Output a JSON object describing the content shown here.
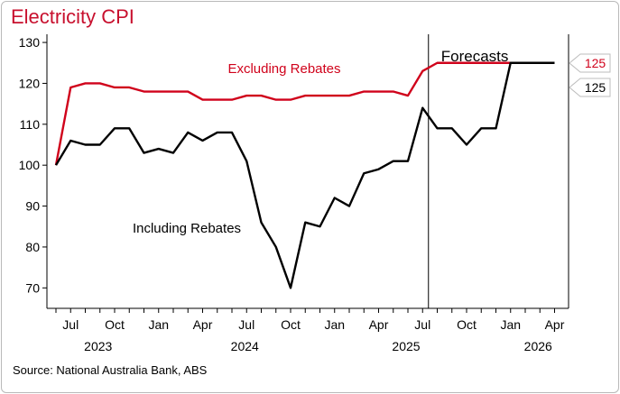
{
  "chart_data": {
    "type": "line",
    "title": "Electricity CPI",
    "source": "Source: National Australia Bank, ABS",
    "ylim": [
      65,
      132
    ],
    "yticks": [
      70,
      80,
      90,
      100,
      110,
      120,
      130
    ],
    "x_months": [
      "2023-06",
      "2023-07",
      "2023-08",
      "2023-09",
      "2023-10",
      "2023-11",
      "2023-12",
      "2024-01",
      "2024-02",
      "2024-03",
      "2024-04",
      "2024-05",
      "2024-06",
      "2024-07",
      "2024-08",
      "2024-09",
      "2024-10",
      "2024-11",
      "2024-12",
      "2025-01",
      "2025-02",
      "2025-03",
      "2025-04",
      "2025-05",
      "2025-06",
      "2025-07",
      "2025-08",
      "2025-09",
      "2025-10",
      "2025-11",
      "2025-12",
      "2026-01",
      "2026-02",
      "2026-03",
      "2026-04"
    ],
    "xticks": [
      {
        "month": "2023-07",
        "label": "Jul"
      },
      {
        "month": "2023-10",
        "label": "Oct"
      },
      {
        "month": "2024-01",
        "label": "Jan"
      },
      {
        "month": "2024-04",
        "label": "Apr"
      },
      {
        "month": "2024-07",
        "label": "Jul"
      },
      {
        "month": "2024-10",
        "label": "Oct"
      },
      {
        "month": "2025-01",
        "label": "Jan"
      },
      {
        "month": "2025-04",
        "label": "Apr"
      },
      {
        "month": "2025-07",
        "label": "Jul"
      },
      {
        "month": "2025-10",
        "label": "Oct"
      },
      {
        "month": "2026-01",
        "label": "Jan"
      },
      {
        "month": "2026-04",
        "label": "Apr"
      }
    ],
    "year_labels": [
      {
        "month": "2023-09",
        "label": "2023"
      },
      {
        "month": "2024-07",
        "label": "2024"
      },
      {
        "month": "2025-06",
        "label": "2025"
      },
      {
        "month": "2026-03",
        "label": "2026"
      }
    ],
    "forecast_start": "2025-08",
    "forecast_label": "Forecasts",
    "series": [
      {
        "name": "Excluding Rebates",
        "color": "#d0021b",
        "values": [
          100,
          119,
          120,
          120,
          119,
          119,
          118,
          118,
          118,
          118,
          116,
          116,
          116,
          117,
          117,
          116,
          116,
          117,
          117,
          117,
          117,
          118,
          118,
          118,
          117,
          123,
          125,
          125,
          125,
          125,
          125,
          125,
          125,
          125,
          125
        ],
        "end_label": "125"
      },
      {
        "name": "Including Rebates",
        "color": "#000000",
        "values": [
          100,
          106,
          105,
          105,
          109,
          109,
          103,
          104,
          103,
          108,
          106,
          108,
          108,
          101,
          86,
          80,
          70,
          86,
          85,
          92,
          90,
          98,
          99,
          101,
          101,
          114,
          109,
          109,
          105,
          109,
          109,
          125,
          125,
          125,
          125
        ],
        "end_label": "125"
      }
    ]
  }
}
